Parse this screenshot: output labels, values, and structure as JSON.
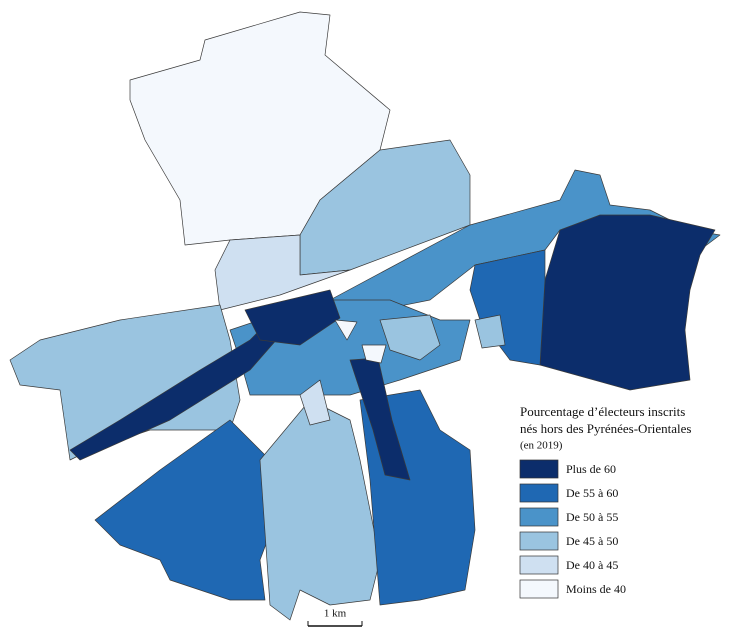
{
  "legend": {
    "title": [
      "Pourcentage d’électeurs inscrits",
      "nés hors des Pyrénées-Orientales"
    ],
    "subtitle": "(en 2019)",
    "items": [
      {
        "label": "Plus de 60",
        "color": "#0c2d6b"
      },
      {
        "label": "De 55 à 60",
        "color": "#1f68b3"
      },
      {
        "label": "De 50 à 55",
        "color": "#4a93c9"
      },
      {
        "label": "De 45 à 50",
        "color": "#9ac4e0"
      },
      {
        "label": "De 40 à 45",
        "color": "#cfe0f1"
      },
      {
        "label": "Moins de 40",
        "color": "#f4f8fd"
      }
    ]
  },
  "scale_bar": "1 km"
}
